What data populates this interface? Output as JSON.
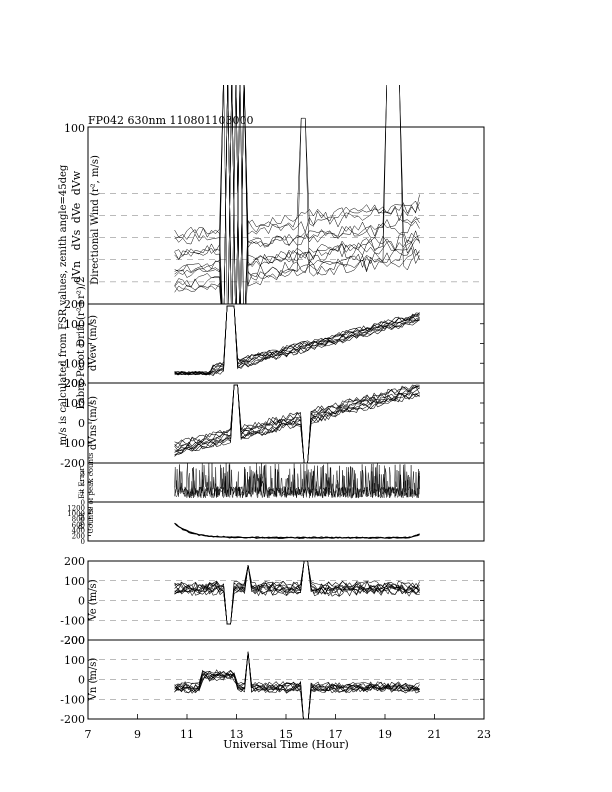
{
  "header": {
    "title": "FP042 630nm 110801103000"
  },
  "xaxis": {
    "label": "Universal Time (Hour)",
    "range": [
      7,
      23
    ],
    "ticks": [
      "7",
      "9",
      "11",
      "13",
      "15",
      "17",
      "19",
      "21",
      "23"
    ]
  },
  "left_note": "m/s is calculated from FSR values, zenith angle=45deg",
  "chart_data": [
    {
      "id": "directional-wind",
      "type": "line",
      "ylabel": "Directional Wind (r², m/s)",
      "row_labels": [
        "dVn",
        "dVs",
        "dVe",
        "dVw"
      ],
      "ylim": [
        0,
        400
      ],
      "ytick_labels": [
        "100"
      ],
      "dashed_levels": [
        50,
        100,
        150,
        200,
        250
      ],
      "series_count": 14
    },
    {
      "id": "dvew",
      "type": "line",
      "ylabel_line1": "Fabry-Perot Drift (r²+r²)/2",
      "ylabel_line2": "dVew (m/s)",
      "ylim": [
        -200,
        200
      ],
      "ytick_labels": [
        "200",
        "100",
        "0",
        "-100",
        "-200"
      ],
      "series_count": 10
    },
    {
      "id": "dvns",
      "type": "line",
      "ylabel": "dVns (m/s)",
      "ylim": [
        -200,
        200
      ],
      "ytick_labels": [
        "200",
        "100",
        "0",
        "-100",
        "-200"
      ],
      "series_count": 10
    },
    {
      "id": "fit-error",
      "type": "line",
      "ylabel_line1": "Fit Error",
      "ylabel_line2": "% of peak counts",
      "ylim": [
        0,
        4
      ],
      "ytick_labels": [
        "3",
        "2",
        "1",
        "0"
      ],
      "series_count": 3
    },
    {
      "id": "peak-counts",
      "type": "line",
      "ylabel_line1": "Peak",
      "ylabel_line2": "Counts",
      "ylim": [
        0,
        1400
      ],
      "ytick_labels": [
        "1200",
        "1000",
        "800",
        "600",
        "400",
        "200",
        "0"
      ],
      "series_count": 3
    },
    {
      "id": "ve",
      "type": "line",
      "ylabel": "Ve (m/s)",
      "ylim": [
        -200,
        200
      ],
      "ytick_labels": [
        "200",
        "100",
        "0",
        "-100",
        "-200"
      ],
      "series_count": 10
    },
    {
      "id": "vn",
      "type": "line",
      "ylabel": "Vn (m/s)",
      "ylim": [
        -200,
        200
      ],
      "ytick_labels": [
        "200",
        "100",
        "0",
        "-100",
        "-200"
      ],
      "series_count": 10
    }
  ]
}
